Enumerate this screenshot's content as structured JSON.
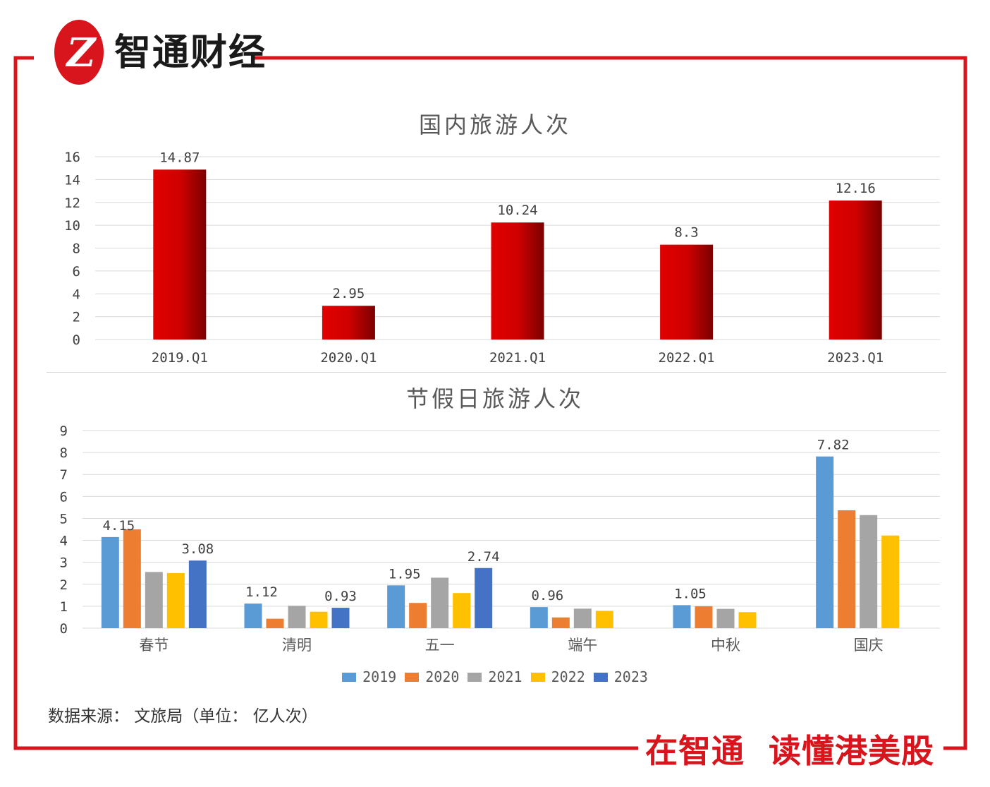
{
  "header": {
    "brand_name": "智通财经",
    "logo_glyph": "Z"
  },
  "footer": {
    "source_text": "数据来源： 文旅局（单位： 亿人次）",
    "slogan": "在智通  读懂港美股"
  },
  "colors": {
    "frame": "#d8141c",
    "bar_red_light": "#e00000",
    "bar_red_dark": "#7a0000",
    "s2019": "#5b9bd5",
    "s2020": "#ed7d31",
    "s2021": "#a5a5a5",
    "s2022": "#ffc000",
    "s2023": "#4472c4"
  },
  "chart_data": [
    {
      "type": "bar",
      "title": "国内旅游人次",
      "categories": [
        "2019.Q1",
        "2020.Q1",
        "2021.Q1",
        "2022.Q1",
        "2023.Q1"
      ],
      "values": [
        14.87,
        2.95,
        10.24,
        8.3,
        12.16
      ],
      "data_labels": [
        "14.87",
        "2.95",
        "10.24",
        "8.3",
        "12.16"
      ],
      "ylim": [
        0,
        16
      ],
      "yticks": [
        "0",
        "2",
        "4",
        "6",
        "8",
        "10",
        "12",
        "14",
        "16"
      ],
      "grid": true,
      "legend": "none"
    },
    {
      "type": "bar",
      "title": "节假日旅游人次",
      "categories": [
        "春节",
        "清明",
        "五一",
        "端午",
        "中秋",
        "国庆"
      ],
      "series": [
        {
          "name": "2019",
          "values": [
            4.15,
            1.12,
            1.95,
            0.96,
            1.05,
            7.82
          ]
        },
        {
          "name": "2020",
          "values": [
            4.5,
            0.43,
            1.15,
            0.49,
            1.0,
            5.37
          ]
        },
        {
          "name": "2021",
          "values": [
            2.56,
            1.02,
            2.3,
            0.89,
            0.88,
            5.15
          ]
        },
        {
          "name": "2022",
          "values": [
            2.51,
            0.75,
            1.6,
            0.79,
            0.73,
            4.22
          ]
        },
        {
          "name": "2023",
          "values": [
            3.08,
            0.93,
            2.74,
            null,
            null,
            null
          ]
        }
      ],
      "data_labels": [
        {
          "category": "春节",
          "series": "2019",
          "text": "4.15"
        },
        {
          "category": "春节",
          "series": "2023",
          "text": "3.08"
        },
        {
          "category": "清明",
          "series": "2019",
          "text": "1.12"
        },
        {
          "category": "清明",
          "series": "2023",
          "text": "0.93"
        },
        {
          "category": "五一",
          "series": "2019",
          "text": "1.95"
        },
        {
          "category": "五一",
          "series": "2023",
          "text": "2.74"
        },
        {
          "category": "端午",
          "series": "2019",
          "text": "0.96"
        },
        {
          "category": "中秋",
          "series": "2019",
          "text": "1.05"
        },
        {
          "category": "国庆",
          "series": "2019",
          "text": "7.82"
        }
      ],
      "ylim": [
        0,
        9
      ],
      "yticks": [
        "0",
        "1",
        "2",
        "3",
        "4",
        "5",
        "6",
        "7",
        "8",
        "9"
      ],
      "grid": true,
      "legend": "bottom"
    }
  ]
}
